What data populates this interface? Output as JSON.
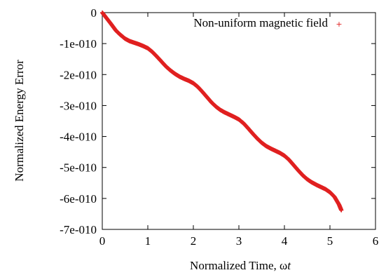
{
  "chart_data": {
    "type": "scatter",
    "title": "",
    "xlabel_prefix": "Normalized Time, ",
    "xlabel_symbol": "ω",
    "xlabel_var": "t",
    "ylabel": "Normalized Energy Error",
    "xlim": [
      0,
      6
    ],
    "ylim": [
      -7e-10,
      0
    ],
    "x_ticks": [
      0,
      1,
      2,
      3,
      4,
      5,
      6
    ],
    "x_tick_labels": [
      "0",
      "1",
      "2",
      "3",
      "4",
      "5",
      "6"
    ],
    "y_ticks": [
      0,
      -1e-10,
      -2e-10,
      -3e-10,
      -4e-10,
      -5e-10,
      -6e-10,
      -7e-10
    ],
    "y_tick_labels": [
      "0",
      "-1e-010",
      "-2e-010",
      "-3e-010",
      "-4e-010",
      "-5e-010",
      "-6e-010",
      "-7e-010"
    ],
    "grid": false,
    "legend_position": "top-right",
    "series": [
      {
        "name": "Non-uniform magnetic field",
        "color": "#e02020",
        "marker": "+",
        "x": [
          0,
          0.1,
          0.2,
          0.3,
          0.4,
          0.5,
          0.6,
          0.7,
          0.8,
          0.9,
          1.0,
          1.1,
          1.2,
          1.3,
          1.4,
          1.5,
          1.6,
          1.7,
          1.8,
          1.9,
          2.0,
          2.1,
          2.2,
          2.3,
          2.4,
          2.5,
          2.6,
          2.7,
          2.8,
          2.9,
          3.0,
          3.1,
          3.2,
          3.3,
          3.4,
          3.5,
          3.6,
          3.7,
          3.8,
          3.9,
          4.0,
          4.1,
          4.2,
          4.3,
          4.4,
          4.5,
          4.6,
          4.7,
          4.8,
          4.9,
          5.0,
          5.1,
          5.2,
          5.25
        ],
        "y": [
          0,
          -1.9e-11,
          -3.8e-11,
          -5.8e-11,
          -7.2e-11,
          -8.4e-11,
          -9.2e-11,
          -9.7e-11,
          -1.02e-10,
          -1.08e-10,
          -1.15e-10,
          -1.27e-10,
          -1.42e-10,
          -1.58e-10,
          -1.74e-10,
          -1.87e-10,
          -1.98e-10,
          -2.07e-10,
          -2.14e-10,
          -2.2e-10,
          -2.28e-10,
          -2.4e-10,
          -2.56e-10,
          -2.73e-10,
          -2.9e-10,
          -3.04e-10,
          -3.15e-10,
          -3.23e-10,
          -3.3e-10,
          -3.37e-10,
          -3.45e-10,
          -3.57e-10,
          -3.73e-10,
          -3.9e-10,
          -4.06e-10,
          -4.2e-10,
          -4.31e-10,
          -4.39e-10,
          -4.46e-10,
          -4.53e-10,
          -4.62e-10,
          -4.75e-10,
          -4.92e-10,
          -5.09e-10,
          -5.25e-10,
          -5.38e-10,
          -5.48e-10,
          -5.56e-10,
          -5.63e-10,
          -5.7e-10,
          -5.8e-10,
          -5.95e-10,
          -6.2e-10,
          -6.38e-10
        ]
      }
    ]
  }
}
